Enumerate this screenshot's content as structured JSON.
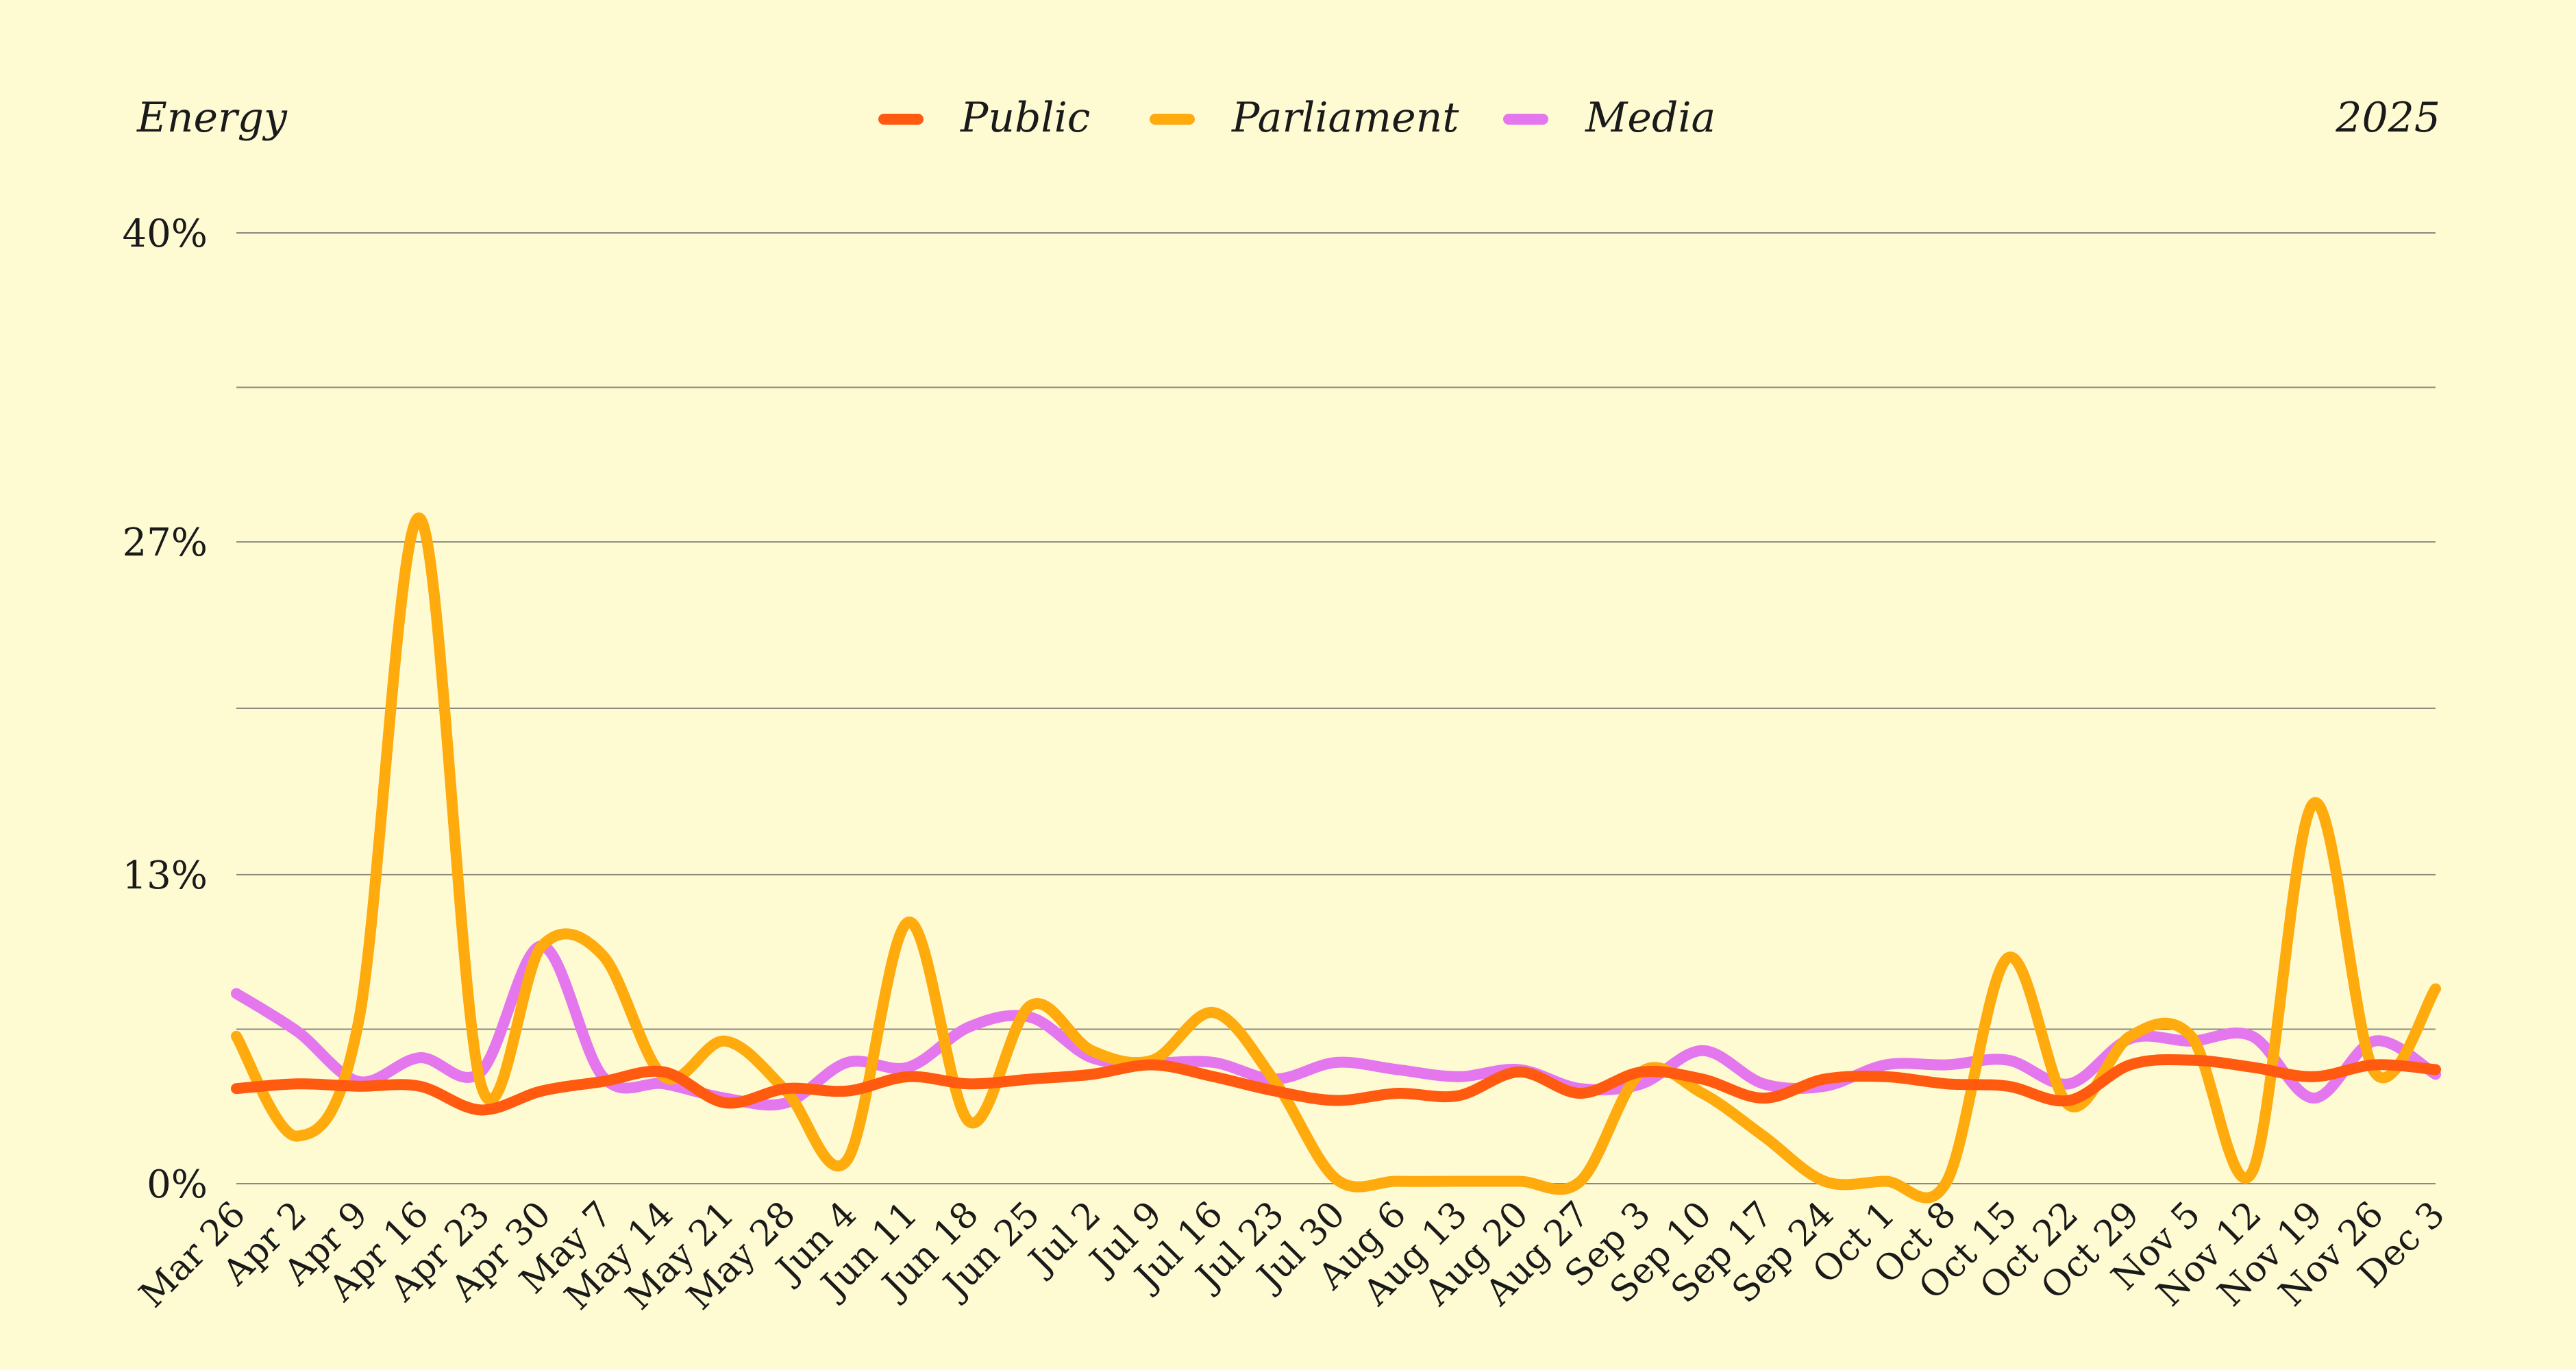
{
  "chart_data": {
    "type": "line",
    "title": "Energy",
    "year_label": "2025",
    "x": [
      "Mar 26",
      "Apr 2",
      "Apr 9",
      "Apr 16",
      "Apr 23",
      "Apr 30",
      "May 7",
      "May 14",
      "May 21",
      "May 28",
      "Jun 4",
      "Jun 11",
      "Jun 18",
      "Jun 25",
      "Jul 2",
      "Jul 9",
      "Jul 16",
      "Jul 23",
      "Jul 30",
      "Aug 6",
      "Aug 13",
      "Aug 20",
      "Aug 27",
      "Sep 3",
      "Sep 10",
      "Sep 17",
      "Sep 24",
      "Oct 1",
      "Oct 8",
      "Oct 15",
      "Oct 22",
      "Oct 29",
      "Nov 5",
      "Nov 12",
      "Nov 19",
      "Nov 26",
      "Dec 3"
    ],
    "y_ticks": [
      0,
      6.5,
      13,
      20,
      27,
      33.5,
      40
    ],
    "y_tick_labels": [
      "0%",
      "",
      "13%",
      "",
      "27%",
      "",
      "40%"
    ],
    "ylim": [
      0,
      40
    ],
    "grid": true,
    "legend_position": "top-center",
    "series": [
      {
        "name": "Public",
        "color": "#ff5a0f",
        "values": [
          4.0,
          4.2,
          4.1,
          4.1,
          3.1,
          3.9,
          4.3,
          4.7,
          3.4,
          4.0,
          3.9,
          4.5,
          4.2,
          4.4,
          4.6,
          5.0,
          4.5,
          3.9,
          3.5,
          3.8,
          3.7,
          4.7,
          3.8,
          4.7,
          4.4,
          3.6,
          4.4,
          4.5,
          4.2,
          4.1,
          3.5,
          5.0,
          5.2,
          4.9,
          4.5,
          5.0,
          4.8
        ]
      },
      {
        "name": "Parliament",
        "color": "#ffaa0d",
        "values": [
          6.2,
          2.0,
          6.8,
          28.0,
          4.2,
          10.0,
          9.6,
          4.5,
          6.0,
          3.9,
          1.0,
          11.0,
          2.6,
          7.5,
          5.6,
          5.2,
          7.2,
          4.3,
          0.2,
          0.1,
          0.1,
          0.1,
          0.1,
          4.7,
          3.8,
          2.0,
          0.1,
          0.1,
          0.1,
          9.5,
          3.3,
          6.2,
          6.2,
          0.5,
          16.0,
          4.7,
          8.2
        ]
      },
      {
        "name": "Media",
        "color": "#e477ee",
        "values": [
          8.0,
          6.4,
          4.3,
          5.3,
          4.7,
          10.0,
          4.5,
          4.2,
          3.6,
          3.4,
          5.1,
          4.9,
          6.6,
          7.0,
          5.3,
          5.1,
          5.1,
          4.4,
          5.1,
          4.8,
          4.5,
          4.8,
          4.0,
          4.2,
          5.6,
          4.2,
          4.1,
          5.0,
          5.0,
          5.2,
          4.2,
          6.1,
          6.0,
          6.2,
          3.6,
          6.0,
          4.6
        ]
      }
    ]
  }
}
